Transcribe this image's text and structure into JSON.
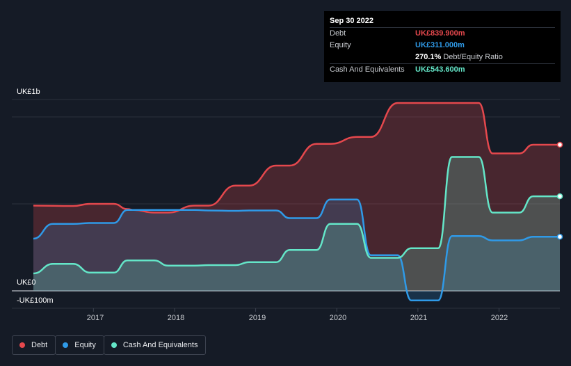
{
  "tooltip": {
    "date": "Sep 30 2022",
    "rows": [
      {
        "label": "Debt",
        "value": "UK£839.900m",
        "color": "#e5484d"
      },
      {
        "label": "Equity",
        "value": "UK£311.000m",
        "color": "#2f9ae8"
      },
      {
        "label": "",
        "value": "270.1%",
        "sub": "Debt/Equity Ratio",
        "color": "#ffffff"
      },
      {
        "label": "Cash And Equivalents",
        "value": "UK£543.600m",
        "color": "#64e6c8"
      }
    ]
  },
  "legend": [
    {
      "label": "Debt",
      "color": "#e5484d"
    },
    {
      "label": "Equity",
      "color": "#2f9ae8"
    },
    {
      "label": "Cash And Equivalents",
      "color": "#64e6c8"
    }
  ],
  "chart_data": {
    "type": "area",
    "title": "",
    "xlabel": "",
    "ylabel": "",
    "y_tick_labels": [
      "UK£1b",
      "UK£0",
      "-UK£100m"
    ],
    "x_tick_labels": [
      "2017",
      "2018",
      "2019",
      "2020",
      "2021",
      "2022"
    ],
    "x_ticks": [
      2017,
      2018,
      2019,
      2020,
      2021,
      2022
    ],
    "xlim": [
      2016.26,
      2022.75
    ],
    "ylim": [
      -100,
      1100
    ],
    "legend_position": "bottom-left",
    "series": [
      {
        "name": "Debt",
        "color": "#e5484d",
        "x": [
          2016.26,
          2016.75,
          2016.96,
          2017.25,
          2017.42,
          2017.5,
          2017.75,
          2017.92,
          2018.25,
          2018.42,
          2018.75,
          2018.92,
          2019.25,
          2019.42,
          2019.75,
          2019.92,
          2020.25,
          2020.42,
          2020.75,
          2020.92,
          2021.25,
          2021.75,
          2021.92,
          2022.25,
          2022.42,
          2022.75
        ],
        "values": [
          490,
          488,
          500,
          500,
          470,
          465,
          450,
          450,
          490,
          490,
          605,
          605,
          720,
          720,
          845,
          845,
          885,
          885,
          1080,
          1080,
          1080,
          1080,
          790,
          790,
          840,
          840
        ]
      },
      {
        "name": "Equity",
        "color": "#2f9ae8",
        "x": [
          2016.26,
          2016.5,
          2016.75,
          2016.96,
          2017.25,
          2017.42,
          2017.75,
          2017.92,
          2018.25,
          2018.42,
          2018.75,
          2018.92,
          2019.25,
          2019.42,
          2019.75,
          2019.92,
          2020.25,
          2020.42,
          2020.75,
          2020.92,
          2021.25,
          2021.42,
          2021.75,
          2021.92,
          2022.25,
          2022.42,
          2022.75
        ],
        "values": [
          300,
          385,
          385,
          390,
          390,
          465,
          465,
          465,
          465,
          462,
          460,
          462,
          462,
          418,
          418,
          525,
          525,
          205,
          205,
          -55,
          -55,
          315,
          315,
          290,
          290,
          311,
          311
        ]
      },
      {
        "name": "Cash And Equivalents",
        "color": "#64e6c8",
        "x": [
          2016.26,
          2016.5,
          2016.75,
          2016.96,
          2017.25,
          2017.42,
          2017.75,
          2017.92,
          2018.25,
          2018.42,
          2018.75,
          2018.92,
          2019.25,
          2019.42,
          2019.75,
          2019.92,
          2020.25,
          2020.42,
          2020.75,
          2020.92,
          2021.25,
          2021.42,
          2021.75,
          2021.92,
          2022.25,
          2022.42,
          2022.75
        ],
        "values": [
          100,
          155,
          155,
          105,
          105,
          175,
          175,
          145,
          145,
          148,
          148,
          165,
          165,
          235,
          235,
          385,
          385,
          190,
          190,
          245,
          245,
          770,
          770,
          450,
          450,
          543.6,
          543.6
        ]
      }
    ]
  }
}
